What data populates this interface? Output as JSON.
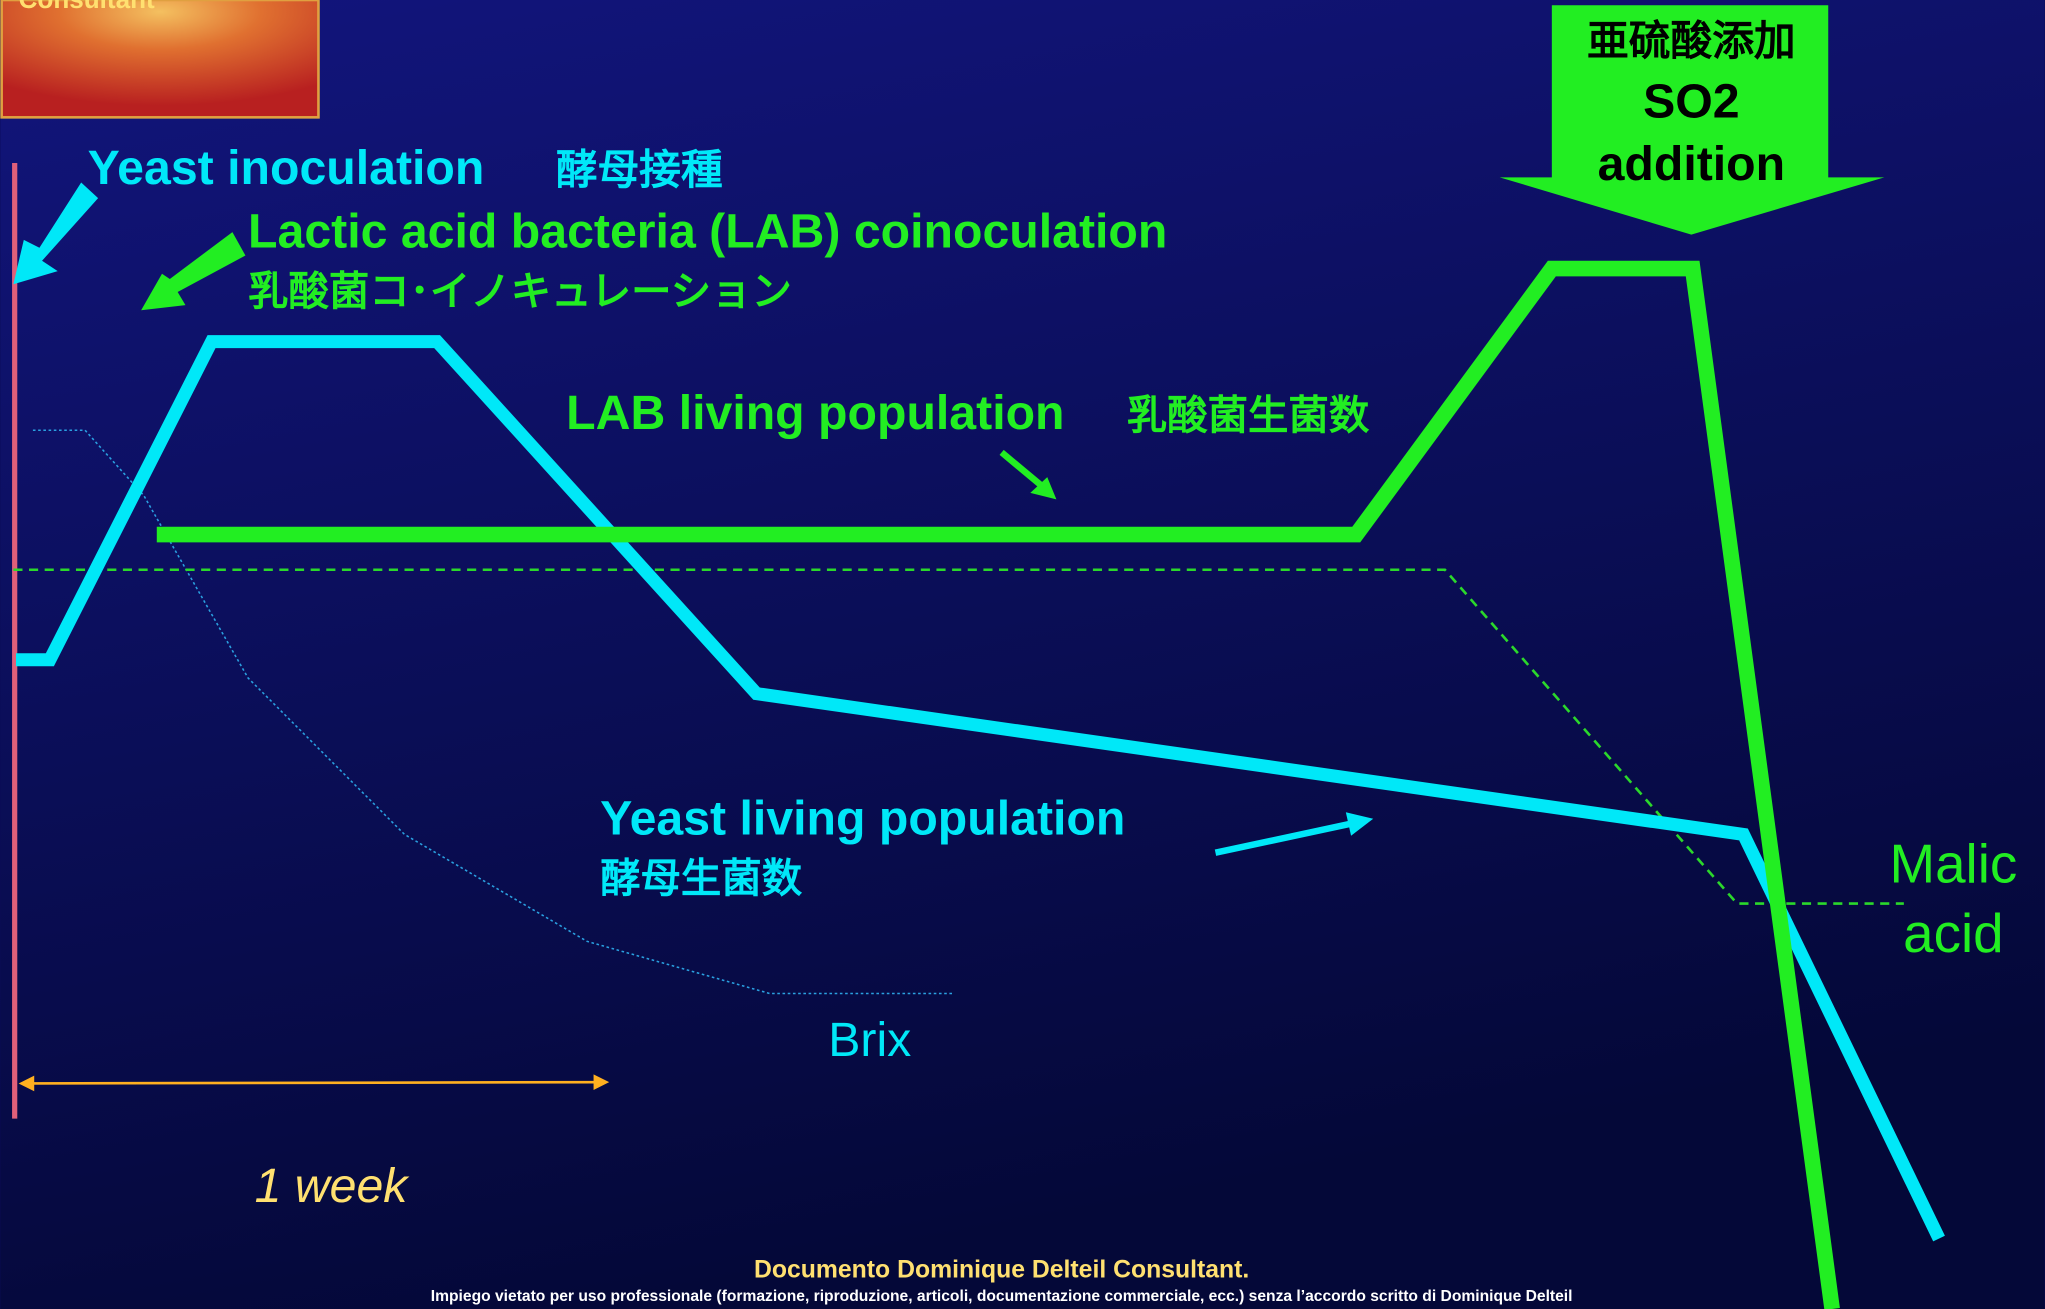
{
  "logo": {
    "text": "Consultant"
  },
  "yeast_inoculation": {
    "label": "Yeast inoculation",
    "label_jp": "酵母接種"
  },
  "lab_coinoculation": {
    "label": "Lactic acid bacteria (LAB) coinoculation",
    "label_jp": "乳酸菌コ･イノキュレーション"
  },
  "lab_population": {
    "label": "LAB living population",
    "label_jp": "乳酸菌生菌数"
  },
  "so2": {
    "label_jp": "亜硫酸添加",
    "line1": "SO2",
    "line2": "addition"
  },
  "yeast_population": {
    "label": "Yeast living population",
    "label_jp": "酵母生菌数"
  },
  "malic_acid": {
    "line1": "Malic",
    "line2": "acid"
  },
  "brix": {
    "label": "Brix"
  },
  "duration": {
    "label": "1 week"
  },
  "footer": {
    "line1": "Documento Dominique Delteil Consultant.",
    "line2": "Impiego vietato per uso professionale (formazione, riproduzione, articoli, documentazione commerciale, ecc.) senza l’accordo scritto di Dominique Delteil"
  }
}
